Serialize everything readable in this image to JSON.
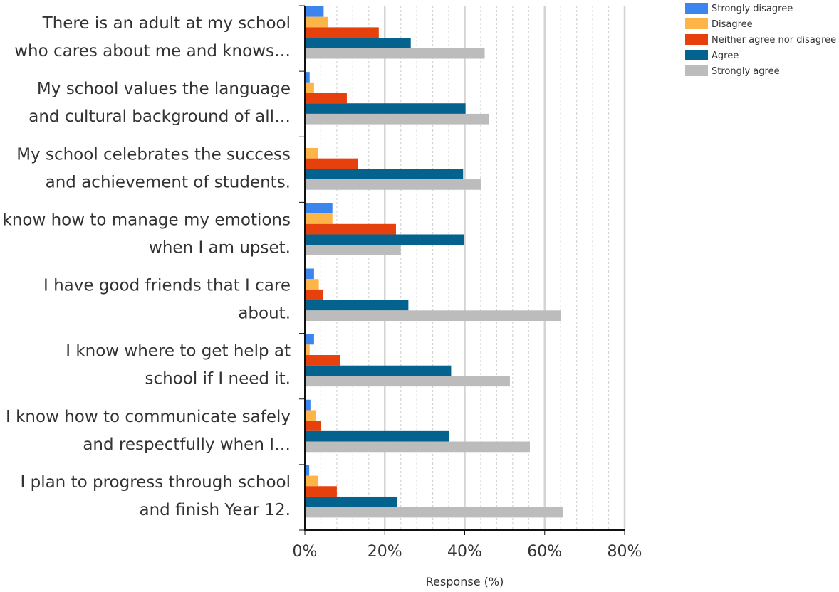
{
  "chart_data": {
    "type": "bar",
    "orientation": "horizontal",
    "categories": [
      [
        "There is an adult at my school",
        "who cares about me and knows…"
      ],
      [
        "My school values the language",
        "and cultural background of all…"
      ],
      [
        "My school celebrates the success",
        "and achievement of students."
      ],
      [
        "I know how to manage my emotions",
        "when I am upset."
      ],
      [
        "I have good friends that I care",
        "about."
      ],
      [
        "I know where to get help at",
        "school if I need it."
      ],
      [
        "I know how to communicate safely",
        "and respectfully when I…"
      ],
      [
        "I plan to progress through school",
        "and finish Year 12."
      ]
    ],
    "series": [
      {
        "name": "Strongly disagree",
        "color": "#3d85ee",
        "values": [
          4.7,
          1.2,
          0,
          6.9,
          2.3,
          2.3,
          1.4,
          1.1
        ]
      },
      {
        "name": "Disagree",
        "color": "#fdb547",
        "values": [
          5.8,
          2.3,
          3.3,
          6.9,
          3.5,
          1.2,
          2.7,
          3.4
        ]
      },
      {
        "name": "Neither agree nor disagree",
        "color": "#e6400c",
        "values": [
          18.5,
          10.5,
          13.2,
          22.8,
          4.6,
          8.9,
          4.1,
          8.0
        ]
      },
      {
        "name": "Agree",
        "color": "#04628f",
        "values": [
          26.5,
          40.2,
          39.6,
          39.8,
          25.9,
          36.6,
          36.1,
          23.0
        ]
      },
      {
        "name": "Strongly agree",
        "color": "#bcbcbc",
        "values": [
          45.0,
          46.0,
          44.0,
          24.0,
          64.0,
          51.3,
          56.3,
          64.5
        ]
      }
    ],
    "xlabel": "Response (%)",
    "ylabel": "",
    "xlim": [
      0,
      80
    ],
    "xticks": [
      0,
      20,
      40,
      60,
      80
    ],
    "xtick_labels": [
      "0%",
      "20%",
      "40%",
      "60%",
      "80%"
    ],
    "grid": "vertical dotted every 4%",
    "legend_position": "top-right"
  }
}
